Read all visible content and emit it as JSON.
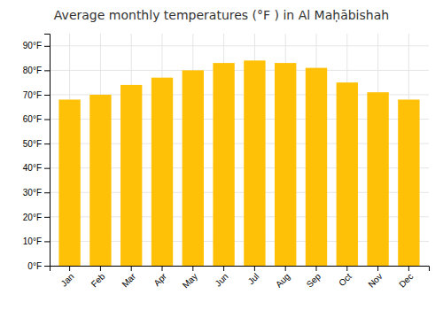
{
  "chart_data": {
    "type": "bar",
    "title": "Average monthly temperatures (°F ) in Al Maḥābishah",
    "categories": [
      "Jan",
      "Feb",
      "Mar",
      "Apr",
      "May",
      "Jun",
      "Jul",
      "Aug",
      "Sep",
      "Oct",
      "Nov",
      "Dec"
    ],
    "values": [
      68,
      70,
      74,
      77,
      80,
      83,
      84,
      83,
      81,
      75,
      71,
      68
    ],
    "color": "#FFC107",
    "ylim": [
      0,
      95
    ],
    "yticks": [
      {
        "value": 0,
        "label": "0°F"
      },
      {
        "value": 10,
        "label": "10°F"
      },
      {
        "value": 20,
        "label": "20°F"
      },
      {
        "value": 30,
        "label": "30°F"
      },
      {
        "value": 40,
        "label": "40°F"
      },
      {
        "value": 50,
        "label": "50°F"
      },
      {
        "value": 60,
        "label": "60°F"
      },
      {
        "value": 70,
        "label": "70°F"
      },
      {
        "value": 80,
        "label": "80°F"
      },
      {
        "value": 90,
        "label": "90°F"
      }
    ],
    "grid": true
  }
}
